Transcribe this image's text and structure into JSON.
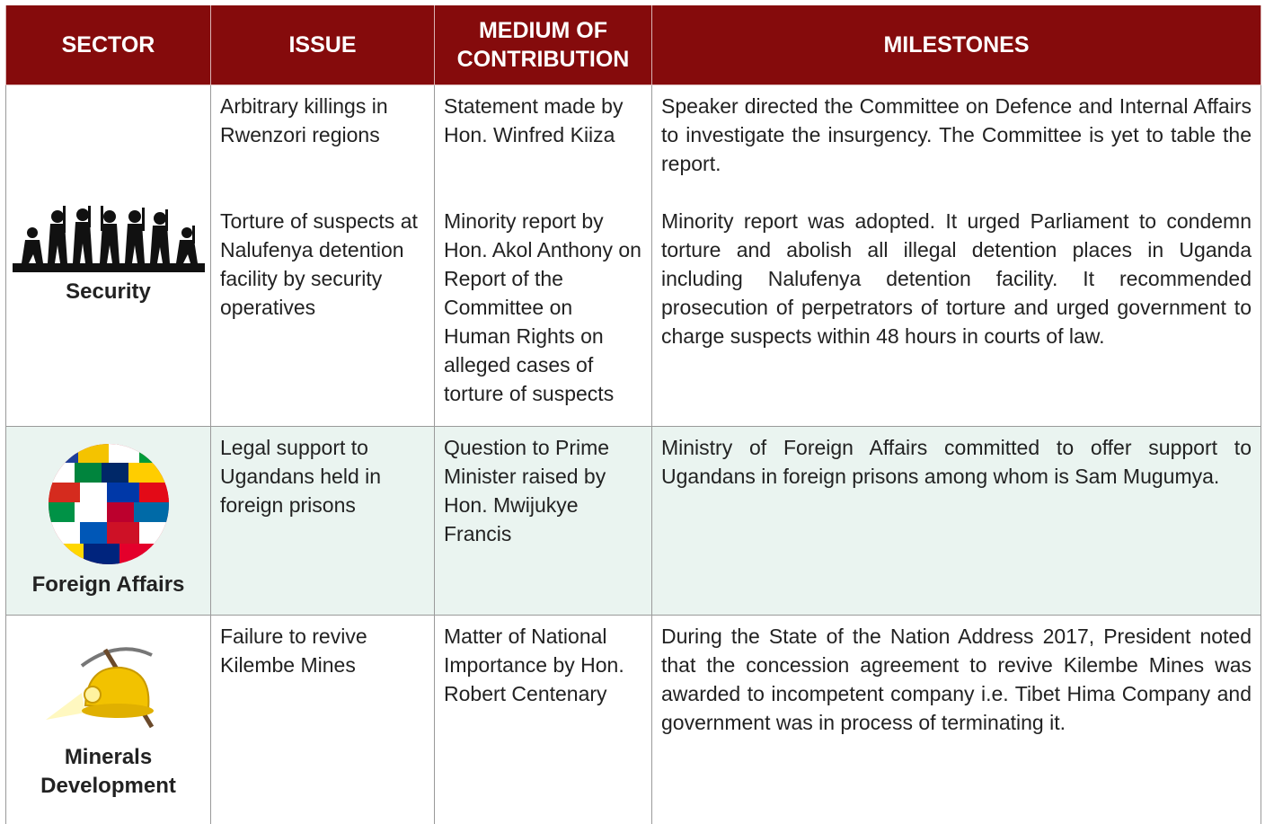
{
  "table": {
    "headers": [
      "SECTOR",
      "ISSUE",
      "MEDIUM OF CONTRIBUTION",
      "MILESTONES"
    ],
    "rows": [
      {
        "sector": "Security",
        "entries": [
          {
            "issue": "Arbitrary killings in Rwenzori regions",
            "medium": "Statement made by Hon. Winfred Kiiza",
            "milestone": "Speaker directed the Committee on Defence and Internal Affairs to investigate the insurgency. The Committee is yet to table the report."
          },
          {
            "issue": "Torture of suspects at Nalufenya detention facility by security operatives",
            "medium": "Minority report by Hon. Akol Anthony on Report of the Committee on Human Rights on alleged cases of torture of suspects",
            "milestone": "Minority report was adopted. It urged Parliament to condemn torture and abolish all illegal detention places in Uganda including Nalufenya detention facility. It recommended prosecution of perpetrators of torture and urged government to charge suspects within 48 hours in courts of law."
          }
        ]
      },
      {
        "sector": "Foreign Affairs",
        "entries": [
          {
            "issue": "Legal support to Ugandans held in foreign prisons",
            "medium": "Question to Prime Minister raised by Hon. Mwijukye Francis",
            "milestone": "Ministry of Foreign Affairs committed to offer support to Ugandans in foreign prisons among whom is Sam Mugumya."
          }
        ]
      },
      {
        "sector": "Minerals Development",
        "entries": [
          {
            "issue": "Failure to revive Kilembe Mines",
            "medium": "Matter of National Importance by Hon. Robert Centenary",
            "milestone": "During the State of the Nation Address 2017, President noted that the concession agreement to revive Kilembe Mines was awarded to incompetent company i.e. Tibet Hima Company and government was in process of terminating it."
          }
        ]
      }
    ]
  }
}
